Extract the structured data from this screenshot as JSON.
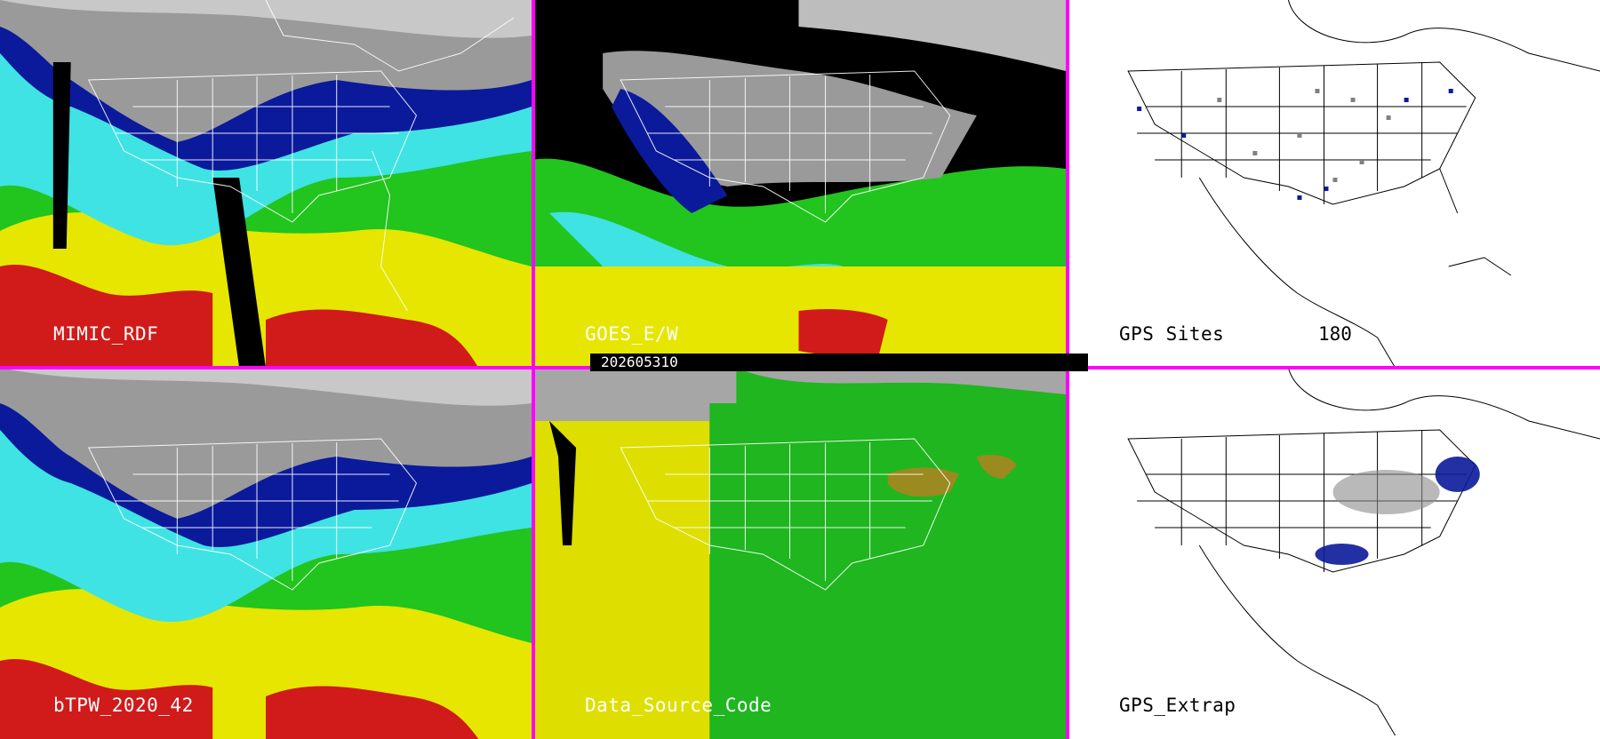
{
  "colors": {
    "divider": "#ff00ff",
    "tpw_red": "#d11a1a",
    "tpw_yellow": "#e6e600",
    "tpw_green": "#22c41e",
    "tpw_cyan": "#3fe3e3",
    "tpw_blue": "#0a1a9a",
    "tpw_gray": "#9a9a9a",
    "source_green": "#1fb61f",
    "source_yellow": "#dede00",
    "source_gray": "#a6a6a6",
    "source_olive": "#9a8a1f"
  },
  "timestamp": "202605310",
  "panels": [
    {
      "id": "mimic",
      "label": "MIMIC_RDF",
      "style": "tpw"
    },
    {
      "id": "goes",
      "label": "GOES_E/W",
      "style": "goes"
    },
    {
      "id": "gps-sites",
      "label": "GPS Sites",
      "count": "180",
      "style": "gps"
    },
    {
      "id": "btpw",
      "label": "bTPW_2020_42",
      "style": "tpw"
    },
    {
      "id": "source",
      "label": "Data_Source_Code",
      "style": "source"
    },
    {
      "id": "gps-extrap",
      "label": "GPS_Extrap",
      "style": "gps"
    }
  ]
}
